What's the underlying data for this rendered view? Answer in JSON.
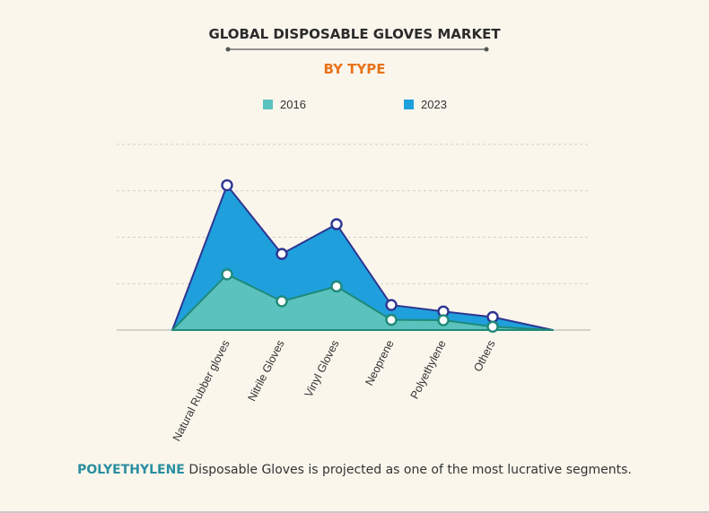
{
  "colors": {
    "series_2016": "#5bc2bd",
    "series_2016_line": "#1f8a78",
    "series_2023": "#1fa0dc",
    "series_2023_line": "#2e3590",
    "subtitle": "#e8731a",
    "highlight": "#2a8fa0"
  },
  "chart_data": {
    "type": "area",
    "title": "GLOBAL DISPOSABLE GLOVES MARKET",
    "subtitle": "BY TYPE",
    "xlabel": "",
    "ylabel": "",
    "categories": [
      "Natural Rubber gloves",
      "Nitrile Gloves",
      "Vinyl Gloves",
      "Neoprene",
      "Polyethylene",
      "Others"
    ],
    "series": [
      {
        "name": "2016",
        "values": [
          30,
          15.5,
          23.5,
          5.5,
          5.3,
          1.8
        ]
      },
      {
        "name": "2023",
        "values": [
          78,
          41,
          57,
          13.5,
          10,
          7
        ]
      }
    ],
    "ylim": [
      0,
      100
    ],
    "grid": true,
    "legend_position": "top"
  },
  "footnote": {
    "highlight": "POLYETHYLENE",
    "text": " Disposable Gloves is projected as one of the most lucrative segments."
  }
}
